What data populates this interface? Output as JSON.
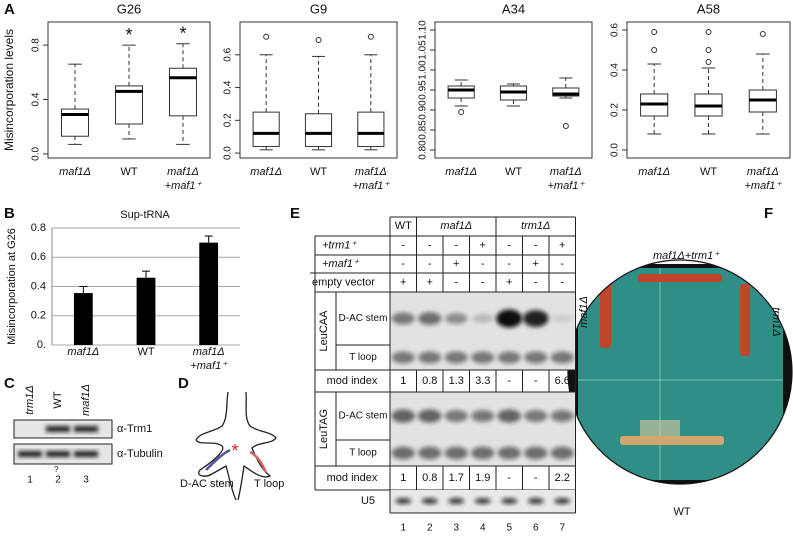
{
  "panel_labels": [
    "A",
    "B",
    "C",
    "D",
    "E",
    "F"
  ],
  "chart_data": [
    {
      "type": "box",
      "title": "G26",
      "y_label": "Misincorporation levels",
      "categories": [
        "maf1Δ",
        "WT",
        [
          "maf1Δ",
          "+maf1⁺"
        ]
      ],
      "min": [
        0.07,
        0.11,
        0.07
      ],
      "q1": [
        0.13,
        0.22,
        0.28
      ],
      "median": [
        0.29,
        0.46,
        0.56
      ],
      "q3": [
        0.33,
        0.5,
        0.63
      ],
      "max": [
        0.66,
        0.8,
        0.81
      ],
      "outliers": [
        [],
        [],
        []
      ],
      "annotations": [
        null,
        "*",
        "*"
      ],
      "ylim": [
        -0.03,
        0.97
      ],
      "yticks": [
        {
          "value": 0,
          "label": "0.0"
        },
        0.4,
        0.8
      ]
    },
    {
      "type": "box",
      "title": "G9",
      "categories": [
        "maf1Δ",
        "WT",
        [
          "maf1Δ",
          "+maf1⁺"
        ]
      ],
      "min": [
        0.02,
        0.02,
        0.02
      ],
      "q1": [
        0.04,
        0.04,
        0.04
      ],
      "median": [
        0.12,
        0.12,
        0.12
      ],
      "q3": [
        0.25,
        0.24,
        0.25
      ],
      "max": [
        0.6,
        0.59,
        0.6
      ],
      "outliers": [
        [
          0.71
        ],
        [
          0.69
        ],
        [
          0.71
        ]
      ],
      "ylim": [
        -0.03,
        0.8
      ],
      "yticks": [
        {
          "value": 0,
          "label": "0.0"
        },
        0.2,
        0.4,
        0.6
      ]
    },
    {
      "type": "box",
      "title": "A34",
      "categories": [
        "maf1Δ",
        "WT",
        [
          "maf1Δ",
          "+maf1⁺"
        ]
      ],
      "min": [
        0.91,
        0.91,
        0.93
      ],
      "q1": [
        0.93,
        0.925,
        0.935
      ],
      "median": [
        0.95,
        0.945,
        0.94
      ],
      "q3": [
        0.96,
        0.96,
        0.955
      ],
      "max": [
        0.975,
        0.965,
        0.98
      ],
      "outliers": [
        [
          0.895
        ],
        [],
        [
          0.86
        ]
      ],
      "ylim": [
        0.78,
        1.12
      ],
      "yticks": [
        {
          "value": 0.8,
          "label": "0.80"
        },
        0.85,
        {
          "value": 0.9,
          "label": "0.90"
        },
        0.95,
        {
          "value": 1,
          "label": "1.00"
        },
        1.05,
        {
          "value": 1.1,
          "label": "1.10"
        }
      ]
    },
    {
      "type": "box",
      "title": "A58",
      "categories": [
        "maf1Δ",
        "WT",
        [
          "maf1Δ",
          "+maf1⁺"
        ]
      ],
      "min": [
        0.08,
        0.08,
        0.08
      ],
      "q1": [
        0.17,
        0.17,
        0.19
      ],
      "median": [
        0.23,
        0.22,
        0.25
      ],
      "q3": [
        0.28,
        0.28,
        0.3
      ],
      "max": [
        0.43,
        0.41,
        0.48
      ],
      "outliers": [
        [
          0.5,
          0.59
        ],
        [
          0.44,
          0.5,
          0.59
        ],
        [
          0.58
        ]
      ],
      "ylim": [
        -0.04,
        0.64
      ],
      "yticks": [
        {
          "value": 0,
          "label": "0.0"
        },
        0.2,
        0.4,
        0.6
      ]
    },
    {
      "type": "bar",
      "title": "Sup-tRNA",
      "y_label": "Misincorporation at G26",
      "categories": [
        "maf1Δ",
        "WT",
        [
          "maf1Δ",
          "+maf1⁺"
        ]
      ],
      "values": [
        0.355,
        0.46,
        0.7
      ],
      "errors": [
        0.045,
        0.045,
        0.045
      ],
      "color": "#000000",
      "ylim": [
        0,
        0.8
      ],
      "yticks": [
        {
          "value": 0,
          "label": "0."
        },
        0.2,
        0.4,
        0.6,
        0.8
      ],
      "grid": true
    }
  ],
  "panel_c": {
    "columns": [
      "trm1Δ",
      "WT",
      "maf1Δ"
    ],
    "antibodies": [
      "α-Trm1",
      "α-Tubulin"
    ],
    "note": "?",
    "lanes": [
      1,
      2,
      3
    ]
  },
  "panel_d": {
    "mark": "*",
    "labels": [
      "D-AC stem",
      "T loop"
    ]
  },
  "panel_e": {
    "header": [
      "WT",
      "maf1Δ",
      "trm1Δ"
    ],
    "conditions": [
      {
        "label": "+trm1⁺",
        "cells": [
          "-",
          "-",
          "-",
          "+",
          "-",
          "-",
          "+"
        ]
      },
      {
        "label": "+maf1⁺",
        "cells": [
          "-",
          "-",
          "+",
          "-",
          "-",
          "+",
          "-"
        ]
      },
      {
        "label": "empty vector",
        "cells": [
          "+",
          "+",
          "-",
          "-",
          "+",
          "-",
          "-"
        ]
      }
    ],
    "blots": [
      {
        "name": "LeuCAA",
        "rows": [
          "D-AC stem",
          "T loop"
        ],
        "mod_index_label": "mod index",
        "mod_index": [
          1,
          0.8,
          1.3,
          3.3,
          "-",
          "-",
          6.6
        ]
      },
      {
        "name": "LeuTAG",
        "rows": [
          "D-AC stem",
          "T loop"
        ],
        "mod_index_label": "mod index",
        "mod_index": [
          1,
          0.8,
          1.7,
          1.9,
          "-",
          "-",
          2.2
        ]
      }
    ],
    "control": "U5",
    "lanes": [
      1,
      2,
      3,
      4,
      5,
      6,
      7
    ]
  },
  "panel_f": {
    "top": "maf1Δ+trm1⁺",
    "left": "maf1Δ",
    "right": "trm1Δ",
    "bottom": "WT"
  }
}
